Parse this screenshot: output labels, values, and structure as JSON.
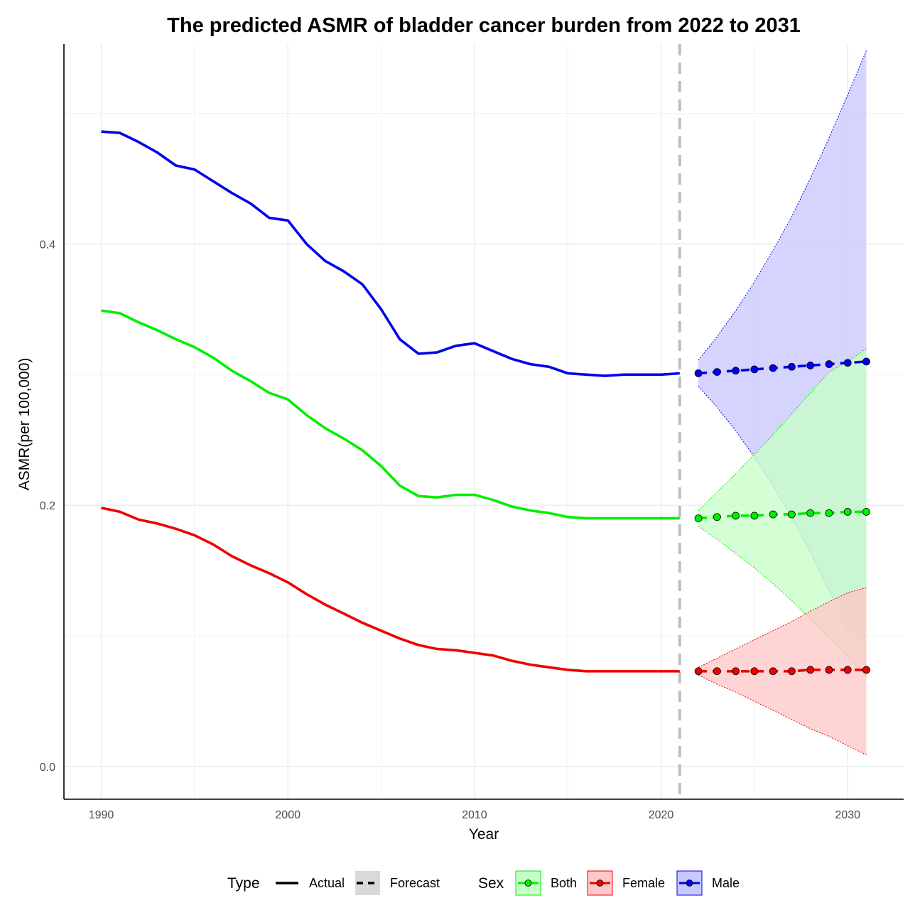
{
  "chart_data": {
    "type": "line",
    "title": "The predicted ASMR of bladder cancer burden from 2022 to 2031",
    "xlabel": "Year",
    "ylabel": "ASMR(per 100,000)",
    "xlim": [
      1988,
      2033
    ],
    "ylim": [
      -0.025,
      0.553
    ],
    "x_ticks": [
      1990,
      2000,
      2010,
      2020,
      2030
    ],
    "x_tick_labels": [
      "1990",
      "2000",
      "2010",
      "2020",
      "2030"
    ],
    "y_ticks": [
      0.0,
      0.2,
      0.4
    ],
    "y_tick_labels": [
      "0.0",
      "0.2",
      "0.4"
    ],
    "minor_y_ticks": [
      0.1,
      0.3,
      0.5
    ],
    "minor_x_ticks": [
      1995,
      2005,
      2015,
      2025
    ],
    "forecast_start_line": 2021,
    "grid": true,
    "legend": {
      "position": "bottom",
      "type_title": "Type",
      "type_entries": [
        "Actual",
        "Forecast"
      ],
      "sex_title": "Sex",
      "sex_entries": [
        "Both",
        "Female",
        "Male"
      ]
    },
    "series": [
      {
        "name": "Male",
        "color": "#0000ee",
        "fill": "#c8c8ff",
        "actual_x": [
          1990,
          1991,
          1992,
          1993,
          1994,
          1995,
          1996,
          1997,
          1998,
          1999,
          2000,
          2001,
          2002,
          2003,
          2004,
          2005,
          2006,
          2007,
          2008,
          2009,
          2010,
          2011,
          2012,
          2013,
          2014,
          2015,
          2016,
          2017,
          2018,
          2019,
          2020,
          2021
        ],
        "actual_y": [
          0.486,
          0.485,
          0.478,
          0.47,
          0.46,
          0.457,
          0.448,
          0.439,
          0.431,
          0.42,
          0.418,
          0.4,
          0.387,
          0.379,
          0.369,
          0.35,
          0.327,
          0.316,
          0.317,
          0.322,
          0.324,
          0.318,
          0.312,
          0.308,
          0.306,
          0.301,
          0.3,
          0.299,
          0.3,
          0.3,
          0.3,
          0.301
        ],
        "forecast_x": [
          2022,
          2023,
          2024,
          2025,
          2026,
          2027,
          2028,
          2029,
          2030,
          2031
        ],
        "forecast_y": [
          0.301,
          0.302,
          0.303,
          0.304,
          0.305,
          0.306,
          0.307,
          0.308,
          0.309,
          0.31
        ],
        "upper": [
          0.311,
          0.329,
          0.349,
          0.371,
          0.395,
          0.421,
          0.45,
          0.481,
          0.514,
          0.548
        ],
        "lower": [
          0.291,
          0.275,
          0.257,
          0.237,
          0.215,
          0.191,
          0.164,
          0.135,
          0.104,
          0.094
        ]
      },
      {
        "name": "Both",
        "color": "#00ee00",
        "fill": "#c8ffc8",
        "actual_x": [
          1990,
          1991,
          1992,
          1993,
          1994,
          1995,
          1996,
          1997,
          1998,
          1999,
          2000,
          2001,
          2002,
          2003,
          2004,
          2005,
          2006,
          2007,
          2008,
          2009,
          2010,
          2011,
          2012,
          2013,
          2014,
          2015,
          2016,
          2017,
          2018,
          2019,
          2020,
          2021
        ],
        "actual_y": [
          0.349,
          0.347,
          0.34,
          0.334,
          0.327,
          0.321,
          0.313,
          0.303,
          0.295,
          0.286,
          0.281,
          0.269,
          0.259,
          0.251,
          0.242,
          0.23,
          0.215,
          0.207,
          0.206,
          0.208,
          0.208,
          0.204,
          0.199,
          0.196,
          0.194,
          0.191,
          0.19,
          0.19,
          0.19,
          0.19,
          0.19,
          0.19
        ],
        "forecast_x": [
          2022,
          2023,
          2024,
          2025,
          2026,
          2027,
          2028,
          2029,
          2030,
          2031
        ],
        "forecast_y": [
          0.19,
          0.191,
          0.192,
          0.192,
          0.193,
          0.193,
          0.194,
          0.194,
          0.195,
          0.195
        ],
        "upper": [
          0.196,
          0.21,
          0.224,
          0.239,
          0.254,
          0.27,
          0.286,
          0.302,
          0.31,
          0.32
        ],
        "lower": [
          0.184,
          0.174,
          0.163,
          0.152,
          0.14,
          0.127,
          0.113,
          0.099,
          0.084,
          0.068
        ]
      },
      {
        "name": "Female",
        "color": "#ee0000",
        "fill": "#ffc8c8",
        "actual_x": [
          1990,
          1991,
          1992,
          1993,
          1994,
          1995,
          1996,
          1997,
          1998,
          1999,
          2000,
          2001,
          2002,
          2003,
          2004,
          2005,
          2006,
          2007,
          2008,
          2009,
          2010,
          2011,
          2012,
          2013,
          2014,
          2015,
          2016,
          2017,
          2018,
          2019,
          2020,
          2021
        ],
        "actual_y": [
          0.198,
          0.195,
          0.189,
          0.186,
          0.182,
          0.177,
          0.17,
          0.161,
          0.154,
          0.148,
          0.141,
          0.132,
          0.124,
          0.117,
          0.11,
          0.104,
          0.098,
          0.093,
          0.09,
          0.089,
          0.087,
          0.085,
          0.081,
          0.078,
          0.076,
          0.074,
          0.073,
          0.073,
          0.073,
          0.073,
          0.073,
          0.073
        ],
        "forecast_x": [
          2022,
          2023,
          2024,
          2025,
          2026,
          2027,
          2028,
          2029,
          2030,
          2031
        ],
        "forecast_y": [
          0.073,
          0.073,
          0.073,
          0.073,
          0.073,
          0.073,
          0.074,
          0.074,
          0.074,
          0.074
        ],
        "upper": [
          0.076,
          0.083,
          0.09,
          0.097,
          0.104,
          0.111,
          0.119,
          0.126,
          0.133,
          0.137
        ],
        "lower": [
          0.07,
          0.063,
          0.057,
          0.05,
          0.043,
          0.036,
          0.029,
          0.023,
          0.016,
          0.009
        ]
      }
    ]
  }
}
